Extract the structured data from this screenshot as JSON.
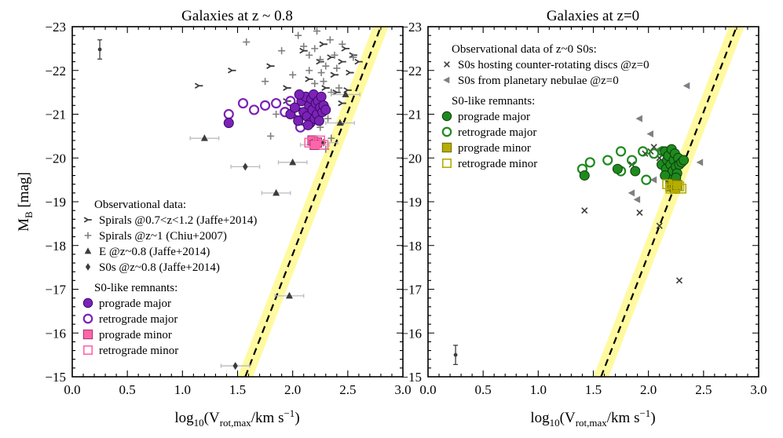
{
  "colors": {
    "band": "#fffaa0",
    "purple": "#7b22b8",
    "purple_dark": "#3a0a60",
    "pink": "#ff66aa",
    "green": "#1e8a1e",
    "green_dark": "#0b3d0b",
    "olive": "#b5ad00",
    "gray": "#7f7f7f",
    "dark": "#3c3c3c"
  },
  "shared": {
    "ylabel_main": "M",
    "ylabel_sub": "B",
    "ylabel_unit": " [mag]",
    "xlabel_pre": "log",
    "xlabel_sub10": "10",
    "xlabel_v": "(V",
    "xlabel_sub": "rot,max",
    "xlabel_unit": "/km s",
    "xlabel_exp": "−1",
    "xlabel_end": ")",
    "x_ticks": [
      "0.0",
      "0.5",
      "1.0",
      "1.5",
      "2.0",
      "2.5",
      "3.0"
    ],
    "y_ticks": [
      "−15",
      "−16",
      "−17",
      "−18",
      "−19",
      "−20",
      "−21",
      "−22",
      "−23"
    ]
  },
  "chart_data": [
    {
      "type": "scatter",
      "title": "Galaxies at z ~ 0.8",
      "xlabel": "log10(Vrot,max/km s−1)",
      "ylabel": "MB [mag]",
      "xlim": [
        0,
        3
      ],
      "ylim": [
        -15,
        -23
      ],
      "relation": {
        "x": [
          1.57,
          2.8
        ],
        "y": [
          -15,
          -23
        ],
        "band_halfwidth": 0.07
      },
      "error_bar_sample": {
        "x": 0.25,
        "y": -22.48,
        "err": 0.22
      },
      "legend_title_obs": "Observational data:",
      "legend_title_rem": "S0-like remnants:",
      "legend": [
        {
          "label": "Spirals @0.7<z<1.2 (Jaffe+2014)",
          "marker": "tri_y"
        },
        {
          "label": "Spirals @z~1 (Chiu+2007)",
          "marker": "plus"
        },
        {
          "label": "E @z~0.8 (Jaffe+2014)",
          "marker": "triangle"
        },
        {
          "label": "S0s @z~0.8 (Jaffe+2014)",
          "marker": "diamond"
        },
        {
          "label": "prograde major",
          "marker": "circle_fill"
        },
        {
          "label": "retrograde major",
          "marker": "circle_open"
        },
        {
          "label": "prograde minor",
          "marker": "square_fill"
        },
        {
          "label": "retrograde minor",
          "marker": "square_open"
        }
      ],
      "series": [
        {
          "name": "Spirals @0.7<z<1.2 (Jaffe+2014)",
          "marker": "tri_y",
          "points": [
            [
              1.15,
              -21.65
            ],
            [
              1.45,
              -22.0
            ],
            [
              1.8,
              -22.1
            ],
            [
              1.95,
              -21.6
            ],
            [
              2.15,
              -21.8
            ],
            [
              2.25,
              -22.2
            ],
            [
              2.3,
              -21.6
            ],
            [
              2.38,
              -21.9
            ],
            [
              2.45,
              -22.2
            ],
            [
              2.48,
              -22.5
            ],
            [
              2.55,
              -22.35
            ],
            [
              2.6,
              -22.2
            ],
            [
              2.52,
              -21.95
            ],
            [
              2.4,
              -21.5
            ],
            [
              2.45,
              -21.25
            ],
            [
              2.1,
              -22.45
            ],
            [
              2.28,
              -22.6
            ],
            [
              2.35,
              -22.3
            ],
            [
              1.95,
              -21.3
            ],
            [
              2.5,
              -21.55
            ]
          ]
        },
        {
          "name": "Spirals @z~1 (Chiu+2007)",
          "marker": "plus",
          "points": [
            [
              1.58,
              -22.65
            ],
            [
              1.75,
              -21.75
            ],
            [
              1.9,
              -22.45
            ],
            [
              2.05,
              -22.8
            ],
            [
              2.1,
              -22.55
            ],
            [
              2.15,
              -22.35
            ],
            [
              2.2,
              -22.5
            ],
            [
              2.22,
              -22.9
            ],
            [
              2.25,
              -22.25
            ],
            [
              2.26,
              -21.95
            ],
            [
              2.28,
              -21.75
            ],
            [
              2.3,
              -22.1
            ],
            [
              2.3,
              -21.2
            ],
            [
              2.32,
              -20.9
            ],
            [
              2.35,
              -21.5
            ],
            [
              2.34,
              -22.7
            ],
            [
              2.38,
              -22.35
            ],
            [
              2.4,
              -22.05
            ],
            [
              2.42,
              -21.6
            ],
            [
              2.2,
              -21.7
            ],
            [
              2.15,
              -22.0
            ],
            [
              2.25,
              -20.7
            ],
            [
              2.1,
              -21.4
            ],
            [
              2.0,
              -21.9
            ],
            [
              2.45,
              -22.6
            ],
            [
              1.85,
              -21.0
            ],
            [
              2.35,
              -20.45
            ],
            [
              2.3,
              -20.2
            ],
            [
              1.8,
              -20.5
            ],
            [
              2.55,
              -22.3
            ]
          ]
        },
        {
          "name": "E @z~0.8 (Jaffe+2014)",
          "marker": "triangle",
          "xerr": true,
          "points": [
            [
              1.2,
              -20.45
            ],
            [
              1.85,
              -19.2
            ],
            [
              2.0,
              -19.9
            ],
            [
              2.2,
              -20.3
            ],
            [
              2.43,
              -20.8
            ],
            [
              2.48,
              -21.45
            ],
            [
              1.97,
              -16.85
            ]
          ]
        },
        {
          "name": "S0s @z~0.8 (Jaffe+2014)",
          "marker": "diamond",
          "xerr": true,
          "points": [
            [
              1.57,
              -19.8
            ],
            [
              2.28,
              -20.35
            ],
            [
              1.48,
              -15.25
            ]
          ]
        },
        {
          "name": "prograde major",
          "marker": "circle_fill",
          "points": [
            [
              1.98,
              -21.0
            ],
            [
              2.02,
              -21.15
            ],
            [
              2.05,
              -20.85
            ],
            [
              2.08,
              -21.3
            ],
            [
              2.1,
              -21.05
            ],
            [
              2.12,
              -21.4
            ],
            [
              2.13,
              -20.95
            ],
            [
              2.15,
              -21.2
            ],
            [
              2.16,
              -20.8
            ],
            [
              2.17,
              -21.35
            ],
            [
              2.18,
              -21.1
            ],
            [
              2.19,
              -21.45
            ],
            [
              2.2,
              -20.9
            ],
            [
              2.21,
              -21.25
            ],
            [
              2.22,
              -21.0
            ],
            [
              2.23,
              -21.3
            ],
            [
              2.24,
              -20.85
            ],
            [
              2.25,
              -21.15
            ],
            [
              2.26,
              -21.4
            ],
            [
              2.27,
              -21.05
            ],
            [
              2.28,
              -21.2
            ],
            [
              2.3,
              -21.1
            ],
            [
              1.42,
              -20.8
            ],
            [
              2.06,
              -21.45
            ],
            [
              2.14,
              -20.75
            ]
          ]
        },
        {
          "name": "retrograde major",
          "marker": "circle_open",
          "points": [
            [
              1.42,
              -21.0
            ],
            [
              1.55,
              -21.25
            ],
            [
              1.65,
              -21.1
            ],
            [
              1.75,
              -21.2
            ],
            [
              1.85,
              -21.25
            ],
            [
              1.98,
              -21.3
            ],
            [
              2.05,
              -21.05
            ],
            [
              2.1,
              -20.85
            ],
            [
              1.93,
              -21.05
            ],
            [
              2.07,
              -20.7
            ]
          ]
        },
        {
          "name": "prograde minor",
          "marker": "square_fill",
          "points": [
            [
              2.18,
              -20.4
            ],
            [
              2.22,
              -20.35
            ],
            [
              2.2,
              -20.3
            ]
          ]
        },
        {
          "name": "retrograde minor",
          "marker": "square_open",
          "points": [
            [
              2.15,
              -20.35
            ],
            [
              2.25,
              -20.4
            ],
            [
              2.28,
              -20.3
            ]
          ]
        }
      ]
    },
    {
      "type": "scatter",
      "title": "Galaxies at z=0",
      "xlabel": "log10(Vrot,max/km s−1)",
      "ylabel": "",
      "xlim": [
        0,
        3
      ],
      "ylim": [
        -15,
        -23
      ],
      "relation": {
        "x": [
          1.57,
          2.8
        ],
        "y": [
          -15,
          -23
        ],
        "band_halfwidth": 0.07
      },
      "error_bar_sample": {
        "x": 0.25,
        "y": -15.5,
        "err": 0.22
      },
      "legend_title_obs": "Observational data of z~0 S0s:",
      "legend_title_rem": "S0-like remnants:",
      "legend": [
        {
          "label": "S0s hosting counter-rotating discs @z=0",
          "marker": "x"
        },
        {
          "label": "S0s from planetary nebulae @z=0",
          "marker": "tri_left"
        },
        {
          "label": "prograde major",
          "marker": "circle_fill"
        },
        {
          "label": "retrograde major",
          "marker": "circle_open"
        },
        {
          "label": "prograde minor",
          "marker": "square_fill"
        },
        {
          "label": "retrograde minor",
          "marker": "square_open"
        }
      ],
      "series": [
        {
          "name": "S0s hosting counter-rotating discs @z=0",
          "marker": "x",
          "points": [
            [
              1.42,
              -18.8
            ],
            [
              1.85,
              -19.85
            ],
            [
              1.92,
              -18.75
            ],
            [
              1.97,
              -20.1
            ],
            [
              2.02,
              -20.15
            ],
            [
              2.05,
              -20.25
            ],
            [
              2.1,
              -18.45
            ],
            [
              2.28,
              -17.2
            ],
            [
              2.1,
              -20.0
            ]
          ]
        },
        {
          "name": "S0s from planetary nebulae @z=0",
          "marker": "tri_left",
          "points": [
            [
              1.92,
              -20.9
            ],
            [
              2.02,
              -20.55
            ],
            [
              2.1,
              -20.2
            ],
            [
              2.2,
              -19.95
            ],
            [
              2.05,
              -19.5
            ],
            [
              1.85,
              -19.2
            ],
            [
              2.35,
              -21.65
            ],
            [
              2.47,
              -19.9
            ],
            [
              1.9,
              -19.05
            ]
          ]
        },
        {
          "name": "prograde major",
          "marker": "circle_fill",
          "points": [
            [
              1.42,
              -19.6
            ],
            [
              1.72,
              -19.75
            ],
            [
              1.88,
              -19.7
            ],
            [
              2.12,
              -19.85
            ],
            [
              2.15,
              -20.15
            ],
            [
              2.16,
              -19.75
            ],
            [
              2.17,
              -19.95
            ],
            [
              2.18,
              -20.05
            ],
            [
              2.19,
              -19.6
            ],
            [
              2.2,
              -19.85
            ],
            [
              2.21,
              -20.2
            ],
            [
              2.22,
              -19.7
            ],
            [
              2.23,
              -19.95
            ],
            [
              2.24,
              -20.1
            ],
            [
              2.25,
              -19.8
            ],
            [
              2.26,
              -19.65
            ],
            [
              2.27,
              -20.0
            ],
            [
              2.28,
              -19.85
            ],
            [
              2.3,
              -19.9
            ],
            [
              2.2,
              -19.5
            ],
            [
              2.25,
              -19.55
            ],
            [
              2.15,
              -19.6
            ],
            [
              2.32,
              -19.95
            ]
          ]
        },
        {
          "name": "retrograde major",
          "marker": "circle_open",
          "points": [
            [
              1.4,
              -19.75
            ],
            [
              1.47,
              -19.9
            ],
            [
              1.63,
              -19.95
            ],
            [
              1.75,
              -20.15
            ],
            [
              1.85,
              -19.95
            ],
            [
              1.95,
              -20.15
            ],
            [
              2.05,
              -20.1
            ],
            [
              2.13,
              -20.15
            ],
            [
              1.98,
              -19.5
            ],
            [
              1.75,
              -19.7
            ]
          ]
        },
        {
          "name": "prograde minor",
          "marker": "square_fill",
          "points": [
            [
              2.2,
              -19.35
            ],
            [
              2.22,
              -19.4
            ],
            [
              2.24,
              -19.3
            ],
            [
              2.26,
              -19.38
            ]
          ]
        },
        {
          "name": "retrograde minor",
          "marker": "square_open",
          "points": [
            [
              2.17,
              -19.4
            ],
            [
              2.2,
              -19.3
            ],
            [
              2.25,
              -19.35
            ],
            [
              2.28,
              -19.35
            ],
            [
              2.3,
              -19.3
            ]
          ]
        }
      ]
    }
  ]
}
